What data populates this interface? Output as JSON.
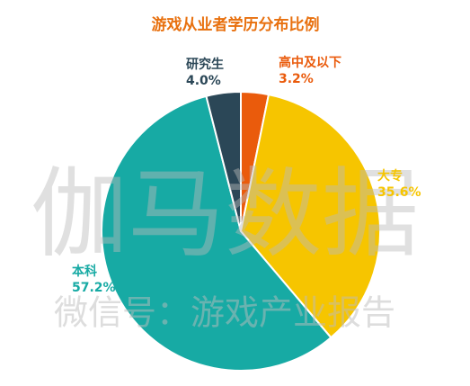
{
  "chart_data": {
    "type": "pie",
    "title": "游戏从业者学历分布比例",
    "categories": [
      "高中及以下",
      "大专",
      "本科",
      "研究生"
    ],
    "values": [
      3.2,
      35.6,
      57.2,
      4.0
    ],
    "value_labels": [
      "3.2%",
      "35.6%",
      "57.2%",
      "4.0%"
    ],
    "colors": [
      "#ea5b0c",
      "#f6c500",
      "#17aaa4",
      "#2b4757"
    ],
    "title_color": "#e8700e",
    "watermark": [
      "伽马数据",
      "微信号：游戏产业报告"
    ]
  }
}
